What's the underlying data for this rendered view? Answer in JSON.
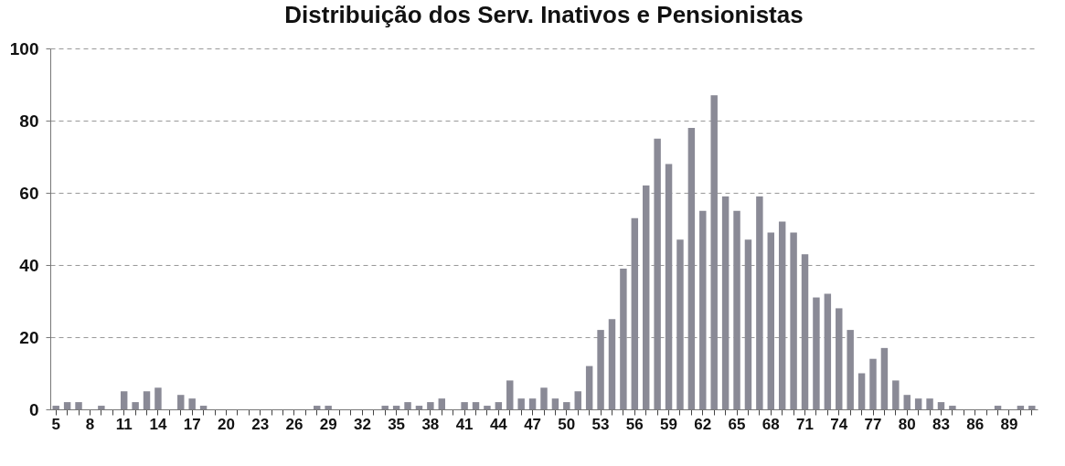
{
  "chart_data": {
    "type": "bar",
    "title": "Distribuição dos Serv. Inativos e Pensionistas",
    "categories": [
      "5",
      null,
      null,
      "8",
      null,
      null,
      "11",
      null,
      null,
      "14",
      null,
      null,
      "17",
      null,
      null,
      "20",
      null,
      null,
      "23",
      null,
      null,
      "26",
      null,
      null,
      "29",
      null,
      null,
      "32",
      null,
      null,
      "35",
      null,
      null,
      "38",
      null,
      null,
      "41",
      null,
      null,
      "44",
      null,
      null,
      "47",
      null,
      null,
      "50",
      null,
      null,
      "53",
      null,
      null,
      "56",
      null,
      null,
      "59",
      null,
      null,
      "62",
      null,
      null,
      "65",
      null,
      null,
      "68",
      null,
      null,
      "71",
      null,
      null,
      "74",
      null,
      null,
      "77",
      null,
      null,
      "80",
      null,
      null,
      "83",
      null,
      null,
      "86",
      null,
      null,
      "89",
      null,
      null
    ],
    "values": [
      1,
      2,
      2,
      0,
      1,
      0,
      5,
      2,
      5,
      6,
      0,
      4,
      3,
      1,
      0,
      0,
      0,
      0,
      0,
      0,
      0,
      0,
      0,
      1,
      1,
      0,
      0,
      0,
      0,
      1,
      1,
      2,
      1,
      2,
      3,
      0,
      2,
      2,
      1,
      2,
      8,
      3,
      3,
      6,
      3,
      2,
      5,
      12,
      22,
      25,
      39,
      53,
      62,
      75,
      68,
      47,
      78,
      55,
      87,
      59,
      55,
      47,
      59,
      49,
      52,
      49,
      43,
      31,
      32,
      28,
      22,
      10,
      14,
      17,
      8,
      4,
      3,
      3,
      2,
      1,
      0,
      0,
      0,
      1,
      0,
      1,
      1
    ],
    "color": "#8a8a96",
    "ylim": [
      0,
      100
    ],
    "yticks": [
      0,
      20,
      40,
      60,
      80,
      100
    ],
    "grid": "y"
  }
}
